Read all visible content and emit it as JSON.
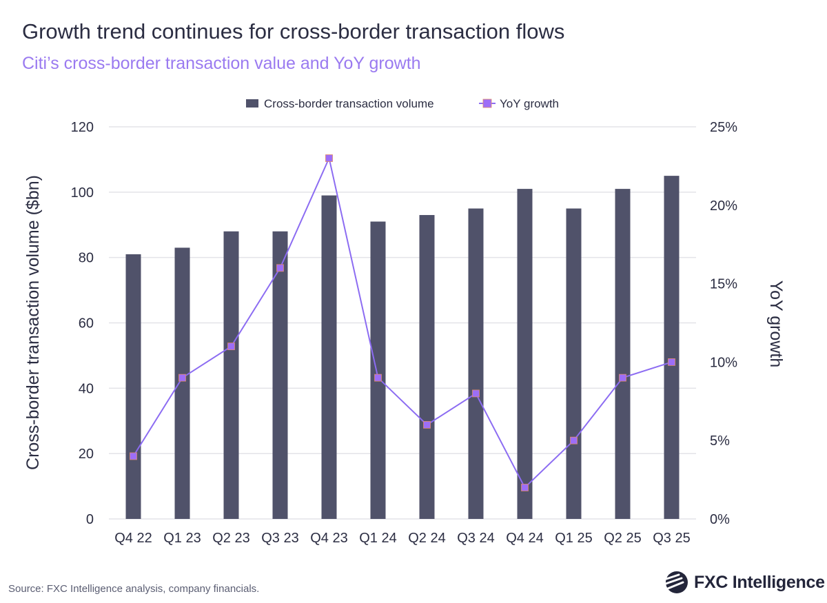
{
  "title": "Growth trend continues for cross-border transaction flows",
  "subtitle": "Citi’s cross-border transaction value and YoY growth",
  "source": "Source: FXC Intelligence analysis, company financials.",
  "logo": {
    "text": "FXC Intelligence"
  },
  "colors": {
    "bar": "#50526a",
    "line": "#8c6cf2",
    "marker": "#9d6ef7",
    "marker_border": "#e08a6a",
    "grid": "#e3e3e8"
  },
  "chart_data": {
    "type": "bar+line",
    "title": "Growth trend continues for cross-border transaction flows",
    "subtitle": "Citi’s cross-border transaction value and YoY growth",
    "categories": [
      "Q4 22",
      "Q1 23",
      "Q2 23",
      "Q3 23",
      "Q4 23",
      "Q1 24",
      "Q2 24",
      "Q3 24",
      "Q4 24",
      "Q1 25",
      "Q2 25",
      "Q3 25"
    ],
    "series": [
      {
        "name": "Cross-border transaction volume",
        "type": "bar",
        "axis": "left",
        "values": [
          81,
          83,
          88,
          88,
          99,
          91,
          93,
          95,
          101,
          95,
          101,
          105
        ]
      },
      {
        "name": "YoY growth",
        "type": "line",
        "axis": "right",
        "values": [
          4,
          9,
          11,
          16,
          23,
          9,
          6,
          8,
          2,
          5,
          9,
          10
        ]
      }
    ],
    "ylabel": "Cross-border transaction volume ($bn)",
    "y2label": "YoY growth",
    "ylim": [
      0,
      120
    ],
    "yticks": [
      "0",
      "20",
      "40",
      "60",
      "80",
      "100",
      "120"
    ],
    "y2lim": [
      0,
      25
    ],
    "y2ticks": [
      "0%",
      "5%",
      "10%",
      "15%",
      "20%",
      "25%"
    ],
    "grid": true,
    "legend_position": "top-center"
  }
}
